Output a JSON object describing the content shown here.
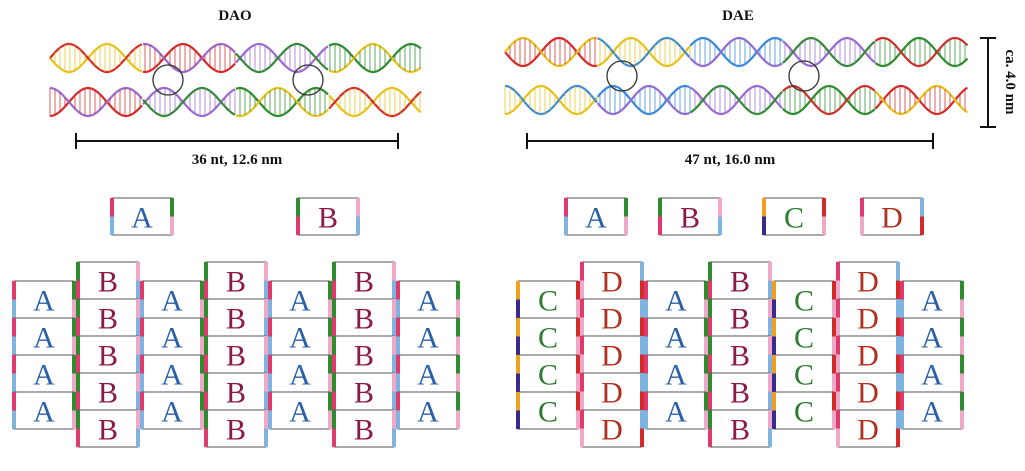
{
  "panels": [
    {
      "id": "dao",
      "title": "DAO",
      "length_label": "36 nt, 12.6 nm",
      "helix_colors": [
        "#e8c21a",
        "#d42a2a",
        "#9a6ad0",
        "#2e8b2e"
      ],
      "crossovers": 2,
      "legend": [
        "A",
        "B"
      ],
      "lattice": [
        {
          "letter": "A",
          "count": 4
        },
        {
          "letter": "B",
          "count": 5
        },
        {
          "letter": "A",
          "count": 4
        },
        {
          "letter": "B",
          "count": 5
        },
        {
          "letter": "A",
          "count": 4
        },
        {
          "letter": "B",
          "count": 5
        },
        {
          "letter": "A",
          "count": 4
        }
      ]
    },
    {
      "id": "dae",
      "title": "DAE",
      "length_label": "47  nt, 16.0 nm",
      "width_label": "ca. 4.0 nm",
      "helix_colors": [
        "#d42a2a",
        "#e8c21a",
        "#3a8ad8",
        "#9a6ad0",
        "#2e8b2e"
      ],
      "crossovers": 2,
      "legend": [
        "A",
        "B",
        "C",
        "D"
      ],
      "lattice": [
        {
          "letter": "C",
          "count": 4
        },
        {
          "letter": "D",
          "count": 5
        },
        {
          "letter": "A",
          "count": 4
        },
        {
          "letter": "B",
          "count": 5
        },
        {
          "letter": "C",
          "count": 4
        },
        {
          "letter": "D",
          "count": 5
        },
        {
          "letter": "A",
          "count": 4
        }
      ]
    }
  ],
  "tiles": {
    "A": {
      "text": "#2a5fa8",
      "edges": [
        "#e0396b",
        "#7fb3e0",
        "#2e8b2e",
        "#f0a8c8"
      ]
    },
    "B": {
      "text": "#8b1a4a",
      "edges": [
        "#2e8b2e",
        "#e0396b",
        "#f0a8c8",
        "#7fb3e0"
      ]
    },
    "C": {
      "text": "#2e7d32",
      "edges": [
        "#f0a020",
        "#3a2a90",
        "#d42a2a",
        "#f0a8c8"
      ]
    },
    "D": {
      "text": "#b03020",
      "edges": [
        "#e0396b",
        "#f0a8c8",
        "#7fb3e0",
        "#d42a2a"
      ]
    }
  }
}
